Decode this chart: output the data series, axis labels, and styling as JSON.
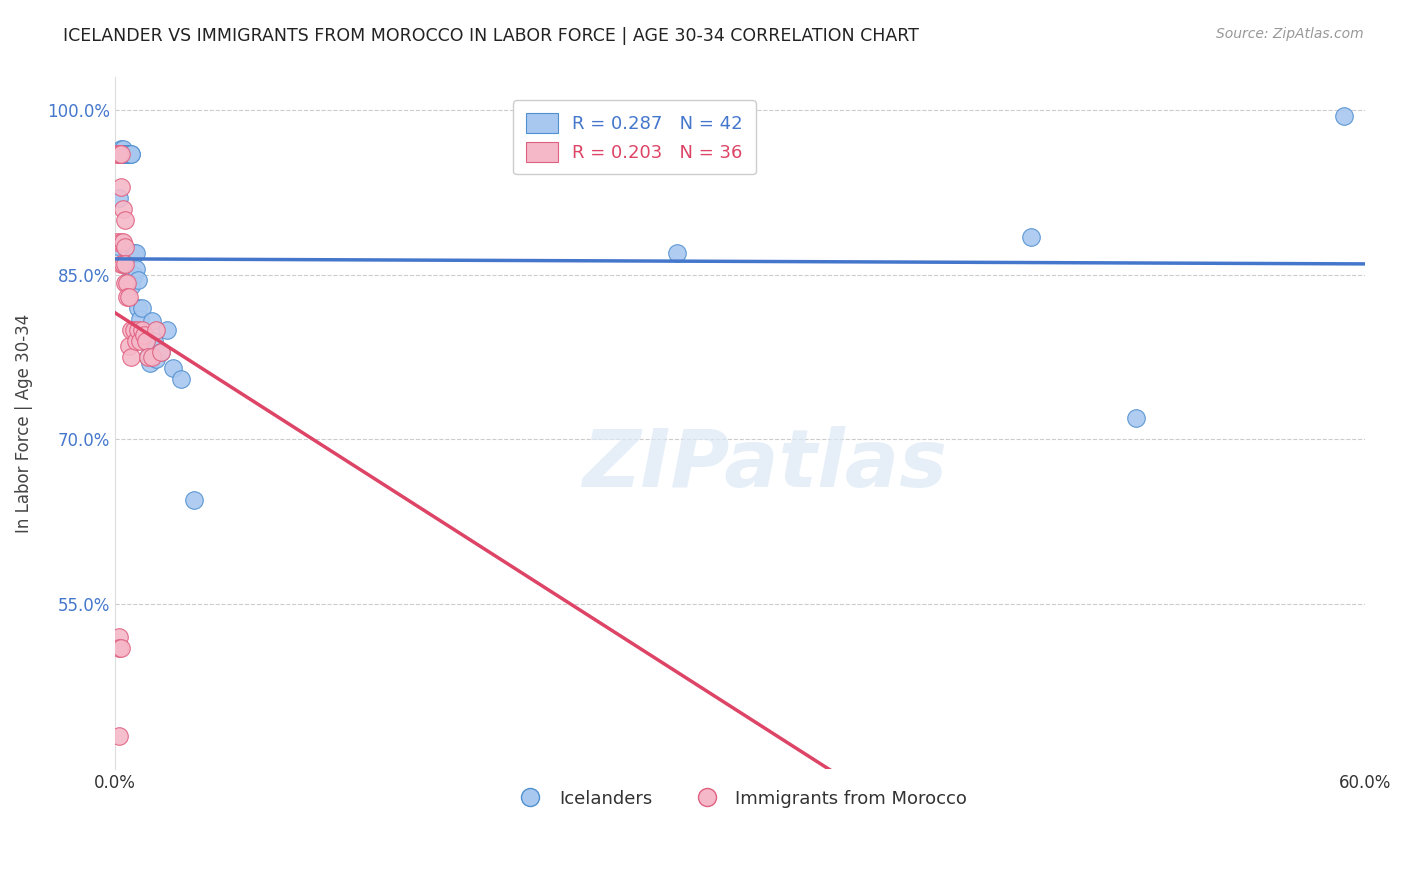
{
  "title": "ICELANDER VS IMMIGRANTS FROM MOROCCO IN LABOR FORCE | AGE 30-34 CORRELATION CHART",
  "source": "Source: ZipAtlas.com",
  "ylabel": "In Labor Force | Age 30-34",
  "xlim": [
    0.0,
    0.6
  ],
  "ylim": [
    0.4,
    1.03
  ],
  "xticks": [
    0.0,
    0.1,
    0.2,
    0.3,
    0.4,
    0.5,
    0.6
  ],
  "xticklabels": [
    "0.0%",
    "",
    "",
    "",
    "",
    "",
    "60.0%"
  ],
  "yticks": [
    0.55,
    0.7,
    0.85,
    1.0
  ],
  "yticklabels": [
    "55.0%",
    "70.0%",
    "85.0%",
    "100.0%"
  ],
  "grid_color": "#cccccc",
  "blue_color": "#a8c8f0",
  "pink_color": "#f5b8c8",
  "blue_edge_color": "#5090d0",
  "pink_edge_color": "#e06080",
  "blue_line_color": "#4477cc",
  "pink_line_color": "#dd4466",
  "legend_blue_r": "R = 0.287",
  "legend_blue_n": "N = 42",
  "legend_pink_r": "R = 0.203",
  "legend_pink_n": "N = 36",
  "watermark": "ZIPatlas",
  "blue_x": [
    0.001,
    0.002,
    0.003,
    0.003,
    0.004,
    0.004,
    0.005,
    0.005,
    0.005,
    0.006,
    0.006,
    0.006,
    0.007,
    0.007,
    0.007,
    0.008,
    0.008,
    0.008,
    0.009,
    0.009,
    0.01,
    0.01,
    0.011,
    0.011,
    0.012,
    0.013,
    0.014,
    0.015,
    0.016,
    0.017,
    0.018,
    0.019,
    0.02,
    0.022,
    0.025,
    0.028,
    0.032,
    0.038,
    0.27,
    0.44,
    0.49,
    0.59
  ],
  "blue_y": [
    0.876,
    0.92,
    0.96,
    0.965,
    0.96,
    0.965,
    0.96,
    0.96,
    0.96,
    0.96,
    0.96,
    0.96,
    0.96,
    0.87,
    0.845,
    0.96,
    0.96,
    0.84,
    0.87,
    0.85,
    0.87,
    0.855,
    0.845,
    0.82,
    0.81,
    0.82,
    0.795,
    0.79,
    0.775,
    0.77,
    0.808,
    0.79,
    0.773,
    0.78,
    0.8,
    0.765,
    0.755,
    0.645,
    0.87,
    0.885,
    0.72,
    0.995
  ],
  "pink_x": [
    0.001,
    0.001,
    0.002,
    0.002,
    0.003,
    0.003,
    0.003,
    0.003,
    0.004,
    0.004,
    0.004,
    0.005,
    0.005,
    0.005,
    0.005,
    0.006,
    0.006,
    0.007,
    0.007,
    0.008,
    0.008,
    0.009,
    0.01,
    0.011,
    0.012,
    0.013,
    0.014,
    0.015,
    0.016,
    0.018,
    0.02,
    0.022,
    0.002,
    0.002,
    0.002,
    0.003
  ],
  "pink_y": [
    0.96,
    0.88,
    0.96,
    0.96,
    0.96,
    0.93,
    0.88,
    0.86,
    0.91,
    0.88,
    0.86,
    0.9,
    0.875,
    0.86,
    0.843,
    0.843,
    0.83,
    0.83,
    0.785,
    0.8,
    0.775,
    0.8,
    0.79,
    0.8,
    0.79,
    0.8,
    0.795,
    0.79,
    0.775,
    0.775,
    0.8,
    0.78,
    0.52,
    0.51,
    0.43,
    0.51
  ]
}
